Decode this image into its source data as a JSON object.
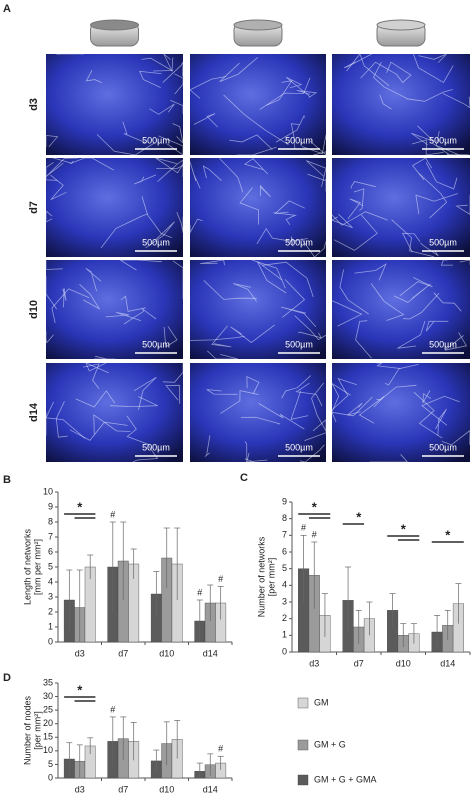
{
  "panel_a": {
    "label": "A",
    "rows": [
      "d3",
      "d7",
      "d10",
      "d14"
    ],
    "scale_bar": "500µm"
  },
  "chart_data": [
    {
      "type": "bar",
      "panel": "B",
      "ylabel": [
        "Length of networks",
        "[mm per mm²]"
      ],
      "categories": [
        "d3",
        "d7",
        "d10",
        "d14"
      ],
      "ylim": [
        0,
        10
      ],
      "yticks": [
        0,
        1,
        2,
        3,
        4,
        5,
        6,
        7,
        8,
        9,
        10
      ],
      "series": [
        {
          "name": "GM + G + GMA",
          "color": "#5b5b5b",
          "values": [
            2.8,
            5.0,
            3.2,
            1.4
          ],
          "errors": [
            2.0,
            3.0,
            1.5,
            1.4
          ]
        },
        {
          "name": "GM + G",
          "color": "#9b9b9b",
          "values": [
            2.3,
            5.4,
            5.6,
            2.6
          ],
          "errors": [
            2.5,
            2.6,
            2.0,
            1.2
          ]
        },
        {
          "name": "GM",
          "color": "#d6d6d6",
          "values": [
            5.0,
            5.2,
            5.2,
            2.6
          ],
          "errors": [
            0.8,
            1.0,
            2.4,
            1.1
          ]
        }
      ],
      "annotations": [
        "*",
        "#",
        "#",
        "#"
      ]
    },
    {
      "type": "bar",
      "panel": "C",
      "ylabel": [
        "Number of networks",
        "[per mm²]"
      ],
      "categories": [
        "d3",
        "d7",
        "d10",
        "d14"
      ],
      "ylim": [
        0,
        9
      ],
      "yticks": [
        0,
        1,
        2,
        3,
        4,
        5,
        6,
        7,
        8,
        9
      ],
      "series": [
        {
          "name": "GM + G + GMA",
          "color": "#5b5b5b",
          "values": [
            5.0,
            3.1,
            2.5,
            1.2
          ],
          "errors": [
            2.0,
            2.0,
            1.0,
            1.0
          ]
        },
        {
          "name": "GM + G",
          "color": "#9b9b9b",
          "values": [
            4.6,
            1.5,
            1.0,
            1.6
          ],
          "errors": [
            2.0,
            1.0,
            0.7,
            0.9
          ]
        },
        {
          "name": "GM",
          "color": "#d6d6d6",
          "values": [
            2.2,
            2.0,
            1.1,
            2.9
          ],
          "errors": [
            1.3,
            1.0,
            0.6,
            1.2
          ]
        }
      ],
      "annotations": [
        "#",
        "#",
        "*",
        "*",
        "*",
        "*"
      ]
    },
    {
      "type": "bar",
      "panel": "D",
      "ylabel": [
        "Number of nodes",
        "[per mm²]"
      ],
      "categories": [
        "d3",
        "d7",
        "d10",
        "d14"
      ],
      "ylim": [
        0,
        35
      ],
      "yticks": [
        0,
        5,
        10,
        15,
        20,
        25,
        30,
        35
      ],
      "series": [
        {
          "name": "GM + G + GMA",
          "color": "#5b5b5b",
          "values": [
            7.0,
            13.5,
            6.3,
            2.5
          ],
          "errors": [
            6.0,
            9.0,
            4.0,
            3.0
          ]
        },
        {
          "name": "GM + G",
          "color": "#9b9b9b",
          "values": [
            6.2,
            14.5,
            12.7,
            4.9
          ],
          "errors": [
            6.0,
            8.0,
            8.0,
            4.0
          ]
        },
        {
          "name": "GM",
          "color": "#d6d6d6",
          "values": [
            11.8,
            13.5,
            14.2,
            5.5
          ],
          "errors": [
            3.0,
            7.0,
            7.0,
            2.5
          ]
        }
      ],
      "annotations": [
        "*",
        "#",
        "#"
      ]
    }
  ]
}
